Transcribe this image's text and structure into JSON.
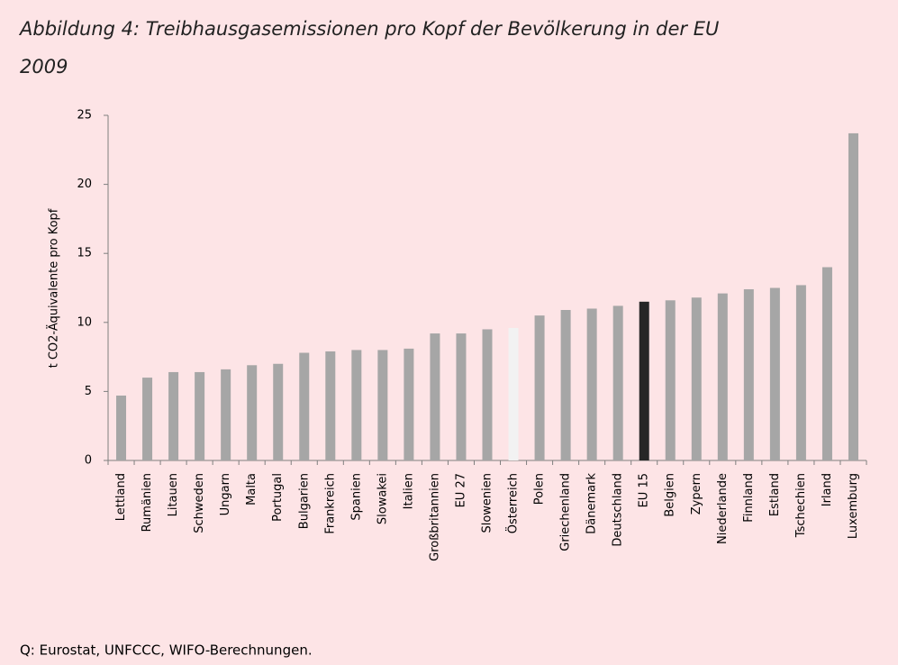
{
  "chart_data": {
    "type": "bar",
    "title": "Abbildung 4: Treibhausgasemissionen pro Kopf der Bevölkerung in der EU",
    "subtitle": "2009",
    "y_label": "t CO2-Äquivalente pro Kopf",
    "source": "Q: Eurostat, UNFCCC, WIFO-Berechnungen.",
    "categories": [
      "Lettland",
      "Rumänien",
      "Litauen",
      "Schweden",
      "Ungarn",
      "Malta",
      "Portugal",
      "Bulgarien",
      "Frankreich",
      "Spanien",
      "Slowakei",
      "Italien",
      "Großbritannien",
      "EU 27",
      "Slowenien",
      "Österreich",
      "Polen",
      "Griechenland",
      "Dänemark",
      "Deutschland",
      "EU 15",
      "Belgien",
      "Zypern",
      "Niederlande",
      "Finnland",
      "Estland",
      "Tschechien",
      "Irland",
      "Luxemburg"
    ],
    "values": [
      4.7,
      6.0,
      6.4,
      6.4,
      6.6,
      6.9,
      7.0,
      7.8,
      7.9,
      8.0,
      8.0,
      8.1,
      9.2,
      9.2,
      9.5,
      9.6,
      10.5,
      10.9,
      11.0,
      11.2,
      11.5,
      11.6,
      11.8,
      12.1,
      12.4,
      12.5,
      12.7,
      14.0,
      23.7
    ],
    "colors": [
      "#a6a6a6",
      "#a6a6a6",
      "#a6a6a6",
      "#a6a6a6",
      "#a6a6a6",
      "#a6a6a6",
      "#a6a6a6",
      "#a6a6a6",
      "#a6a6a6",
      "#a6a6a6",
      "#a6a6a6",
      "#a6a6a6",
      "#a6a6a6",
      "#a6a6a6",
      "#a6a6a6",
      "#f2f2f2",
      "#a6a6a6",
      "#a6a6a6",
      "#a6a6a6",
      "#a6a6a6",
      "#262626",
      "#a6a6a6",
      "#a6a6a6",
      "#a6a6a6",
      "#a6a6a6",
      "#a6a6a6",
      "#a6a6a6",
      "#a6a6a6",
      "#a6a6a6"
    ],
    "ylim": [
      0,
      25
    ],
    "yticks": [
      0,
      5,
      10,
      15,
      20,
      25
    ],
    "grid": false
  }
}
